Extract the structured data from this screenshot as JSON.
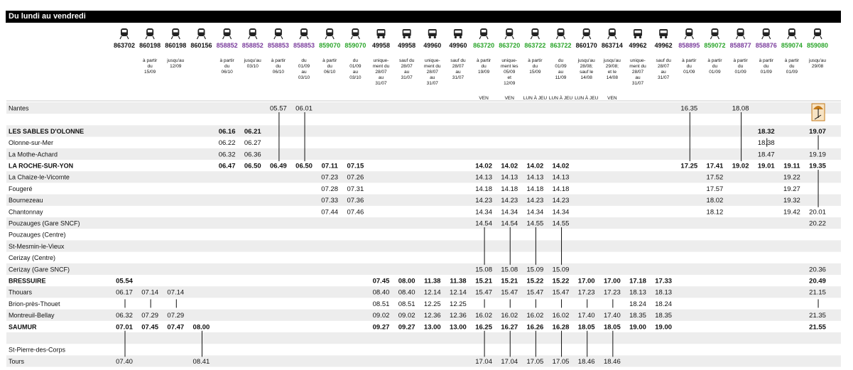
{
  "banner": "Du lundi au vendredi",
  "colors": {
    "purple": "#7a3d9c",
    "green": "#2aa52a",
    "black": "#111111",
    "band": "#ededed",
    "bus_icon_bg": "#f7e3c4"
  },
  "columns": [
    {
      "num": "863702",
      "color": "black",
      "icon": "train-icon",
      "note": [],
      "day": ""
    },
    {
      "num": "860198",
      "color": "black",
      "icon": "train-icon",
      "note": [
        "à partir",
        "du",
        "15/09"
      ],
      "day": ""
    },
    {
      "num": "860198",
      "color": "black",
      "icon": "train-icon",
      "note": [
        "jusqu'au",
        "12/09"
      ],
      "day": ""
    },
    {
      "num": "860156",
      "color": "black",
      "icon": "train-icon",
      "note": [],
      "day": ""
    },
    {
      "num": "858852",
      "color": "purple",
      "icon": "train-icon",
      "note": [
        "à partir",
        "du",
        "06/10"
      ],
      "day": ""
    },
    {
      "num": "858852",
      "color": "purple",
      "icon": "train-icon",
      "note": [
        "jusqu'au",
        "03/10"
      ],
      "day": ""
    },
    {
      "num": "858853",
      "color": "purple",
      "icon": "train-icon",
      "note": [
        "à partir",
        "du",
        "06/10"
      ],
      "day": ""
    },
    {
      "num": "858853",
      "color": "purple",
      "icon": "train-icon",
      "note": [
        "du",
        "01/09",
        "au",
        "03/10"
      ],
      "day": ""
    },
    {
      "num": "859070",
      "color": "green",
      "icon": "train-icon",
      "note": [
        "à partir",
        "du",
        "06/10"
      ],
      "day": ""
    },
    {
      "num": "859070",
      "color": "green",
      "icon": "train-icon",
      "note": [
        "du",
        "01/09",
        "au",
        "03/10"
      ],
      "day": ""
    },
    {
      "num": "49958",
      "color": "black",
      "icon": "bus-icon",
      "note": [
        "unique-",
        "ment du",
        "28/07",
        "au",
        "31/07"
      ],
      "day": ""
    },
    {
      "num": "49958",
      "color": "black",
      "icon": "bus-icon",
      "note": [
        "sauf du",
        "28/07",
        "au",
        "31/07"
      ],
      "day": ""
    },
    {
      "num": "49960",
      "color": "black",
      "icon": "bus-icon",
      "note": [
        "unique-",
        "ment du",
        "28/07",
        "au",
        "31/07"
      ],
      "day": ""
    },
    {
      "num": "49960",
      "color": "black",
      "icon": "bus-icon",
      "note": [
        "sauf du",
        "28/07",
        "au",
        "31/07"
      ],
      "day": ""
    },
    {
      "num": "863720",
      "color": "green",
      "icon": "train-icon",
      "note": [
        "à partir",
        "du",
        "19/09"
      ],
      "day": "VEN"
    },
    {
      "num": "863720",
      "color": "green",
      "icon": "train-icon",
      "note": [
        "unique-",
        "ment les",
        "05/09",
        "et",
        "12/09"
      ],
      "day": "VEN"
    },
    {
      "num": "863722",
      "color": "green",
      "icon": "train-icon",
      "note": [
        "à partir",
        "du",
        "15/09"
      ],
      "day": "LUN À JEU"
    },
    {
      "num": "863722",
      "color": "green",
      "icon": "train-icon",
      "note": [
        "du",
        "01/09",
        "au",
        "11/09"
      ],
      "day": "LUN À JEU"
    },
    {
      "num": "860170",
      "color": "black",
      "icon": "train-icon",
      "note": [
        "jusqu'au",
        "28/08;",
        "sauf le",
        "14/08"
      ],
      "day": "LUN À JEU"
    },
    {
      "num": "863714",
      "color": "black",
      "icon": "train-icon",
      "note": [
        "jusqu'au",
        "29/08;",
        "et le",
        "14/08"
      ],
      "day": "VEN"
    },
    {
      "num": "49962",
      "color": "black",
      "icon": "bus-icon",
      "note": [
        "unique-",
        "ment du",
        "28/07",
        "au",
        "31/07"
      ],
      "day": ""
    },
    {
      "num": "49962",
      "color": "black",
      "icon": "bus-icon",
      "note": [
        "sauf du",
        "28/07",
        "au",
        "31/07"
      ],
      "day": ""
    },
    {
      "num": "858895",
      "color": "purple",
      "icon": "train-icon",
      "note": [
        "à partir",
        "du",
        "01/09"
      ],
      "day": ""
    },
    {
      "num": "859072",
      "color": "green",
      "icon": "train-icon",
      "note": [
        "à partir",
        "du",
        "01/09"
      ],
      "day": ""
    },
    {
      "num": "858877",
      "color": "purple",
      "icon": "train-icon",
      "note": [
        "à partir",
        "du",
        "01/09"
      ],
      "day": ""
    },
    {
      "num": "858876",
      "color": "purple",
      "icon": "train-icon",
      "note": [
        "à partir",
        "du",
        "01/09"
      ],
      "day": ""
    },
    {
      "num": "859074",
      "color": "green",
      "icon": "train-icon",
      "note": [
        "à partir",
        "du",
        "01/09"
      ],
      "day": ""
    },
    {
      "num": "859080",
      "color": "green",
      "icon": "train-icon",
      "note": [
        "jusqu'au",
        "29/08"
      ],
      "day": ""
    }
  ],
  "stations": [
    {
      "name": "Nantes",
      "bold": false
    },
    {
      "name": "",
      "bold": false
    },
    {
      "name": "LES SABLES D'OLONNE",
      "bold": true
    },
    {
      "name": "Olonne-sur-Mer",
      "bold": false
    },
    {
      "name": "La Mothe-Achard",
      "bold": false
    },
    {
      "name": "LA ROCHE-SUR-YON",
      "bold": true
    },
    {
      "name": "La Chaize-le-Vicomte",
      "bold": false
    },
    {
      "name": "Fougeré",
      "bold": false
    },
    {
      "name": "Bournezeau",
      "bold": false
    },
    {
      "name": "Chantonnay",
      "bold": false
    },
    {
      "name": "Pouzauges (Gare SNCF)",
      "bold": false
    },
    {
      "name": "Pouzauges (Centre)",
      "bold": false
    },
    {
      "name": "St-Mesmin-le-Vieux",
      "bold": false
    },
    {
      "name": "Cerizay (Centre)",
      "bold": false
    },
    {
      "name": "Cerizay (Gare SNCF)",
      "bold": false
    },
    {
      "name": "BRESSUIRE",
      "bold": true
    },
    {
      "name": "Thouars",
      "bold": false
    },
    {
      "name": "Brion-près-Thouet",
      "bold": false
    },
    {
      "name": "Montreuil-Bellay",
      "bold": false
    },
    {
      "name": "SAUMUR",
      "bold": true
    },
    {
      "name": "",
      "bold": false
    },
    {
      "name": "St-Pierre-des-Corps",
      "bold": false
    },
    {
      "name": "Tours",
      "bold": false
    }
  ],
  "cells": [
    {
      "r": 0,
      "c": 6,
      "t": "05.57"
    },
    {
      "r": 0,
      "c": 7,
      "t": "06.01"
    },
    {
      "r": 0,
      "c": 22,
      "t": "16.35"
    },
    {
      "r": 0,
      "c": 24,
      "t": "18.08"
    },
    {
      "r": 2,
      "c": 4,
      "t": "06.16"
    },
    {
      "r": 2,
      "c": 5,
      "t": "06.21"
    },
    {
      "r": 2,
      "c": 25,
      "t": "18.32"
    },
    {
      "r": 2,
      "c": 27,
      "t": "19.07"
    },
    {
      "r": 3,
      "c": 4,
      "t": "06.22"
    },
    {
      "r": 3,
      "c": 5,
      "t": "06.27"
    },
    {
      "r": 3,
      "c": 25,
      "t": "18.38"
    },
    {
      "r": 4,
      "c": 4,
      "t": "06.32"
    },
    {
      "r": 4,
      "c": 5,
      "t": "06.36"
    },
    {
      "r": 4,
      "c": 25,
      "t": "18.47"
    },
    {
      "r": 4,
      "c": 27,
      "t": "19.19"
    },
    {
      "r": 5,
      "c": 4,
      "t": "06.47"
    },
    {
      "r": 5,
      "c": 5,
      "t": "06.50"
    },
    {
      "r": 5,
      "c": 6,
      "t": "06.49"
    },
    {
      "r": 5,
      "c": 7,
      "t": "06.50"
    },
    {
      "r": 5,
      "c": 8,
      "t": "07.11"
    },
    {
      "r": 5,
      "c": 9,
      "t": "07.15"
    },
    {
      "r": 5,
      "c": 14,
      "t": "14.02"
    },
    {
      "r": 5,
      "c": 15,
      "t": "14.02"
    },
    {
      "r": 5,
      "c": 16,
      "t": "14.02"
    },
    {
      "r": 5,
      "c": 17,
      "t": "14.02"
    },
    {
      "r": 5,
      "c": 22,
      "t": "17.25"
    },
    {
      "r": 5,
      "c": 23,
      "t": "17.41"
    },
    {
      "r": 5,
      "c": 24,
      "t": "19.02"
    },
    {
      "r": 5,
      "c": 25,
      "t": "19.01"
    },
    {
      "r": 5,
      "c": 26,
      "t": "19.11"
    },
    {
      "r": 5,
      "c": 27,
      "t": "19.35"
    },
    {
      "r": 6,
      "c": 8,
      "t": "07.23"
    },
    {
      "r": 6,
      "c": 9,
      "t": "07.26"
    },
    {
      "r": 6,
      "c": 14,
      "t": "14.13"
    },
    {
      "r": 6,
      "c": 15,
      "t": "14.13"
    },
    {
      "r": 6,
      "c": 16,
      "t": "14.13"
    },
    {
      "r": 6,
      "c": 17,
      "t": "14.13"
    },
    {
      "r": 6,
      "c": 23,
      "t": "17.52"
    },
    {
      "r": 6,
      "c": 26,
      "t": "19.22"
    },
    {
      "r": 7,
      "c": 8,
      "t": "07.28"
    },
    {
      "r": 7,
      "c": 9,
      "t": "07.31"
    },
    {
      "r": 7,
      "c": 14,
      "t": "14.18"
    },
    {
      "r": 7,
      "c": 15,
      "t": "14.18"
    },
    {
      "r": 7,
      "c": 16,
      "t": "14.18"
    },
    {
      "r": 7,
      "c": 17,
      "t": "14.18"
    },
    {
      "r": 7,
      "c": 23,
      "t": "17.57"
    },
    {
      "r": 7,
      "c": 26,
      "t": "19.27"
    },
    {
      "r": 8,
      "c": 8,
      "t": "07.33"
    },
    {
      "r": 8,
      "c": 9,
      "t": "07.36"
    },
    {
      "r": 8,
      "c": 14,
      "t": "14.23"
    },
    {
      "r": 8,
      "c": 15,
      "t": "14.23"
    },
    {
      "r": 8,
      "c": 16,
      "t": "14.23"
    },
    {
      "r": 8,
      "c": 17,
      "t": "14.23"
    },
    {
      "r": 8,
      "c": 23,
      "t": "18.02"
    },
    {
      "r": 8,
      "c": 26,
      "t": "19.32"
    },
    {
      "r": 9,
      "c": 8,
      "t": "07.44"
    },
    {
      "r": 9,
      "c": 9,
      "t": "07.46"
    },
    {
      "r": 9,
      "c": 14,
      "t": "14.34"
    },
    {
      "r": 9,
      "c": 15,
      "t": "14.34"
    },
    {
      "r": 9,
      "c": 16,
      "t": "14.34"
    },
    {
      "r": 9,
      "c": 17,
      "t": "14.34"
    },
    {
      "r": 9,
      "c": 23,
      "t": "18.12"
    },
    {
      "r": 9,
      "c": 26,
      "t": "19.42"
    },
    {
      "r": 9,
      "c": 27,
      "t": "20.01"
    },
    {
      "r": 10,
      "c": 14,
      "t": "14.54"
    },
    {
      "r": 10,
      "c": 15,
      "t": "14.54"
    },
    {
      "r": 10,
      "c": 16,
      "t": "14.55"
    },
    {
      "r": 10,
      "c": 17,
      "t": "14.55"
    },
    {
      "r": 10,
      "c": 27,
      "t": "20.22"
    },
    {
      "r": 14,
      "c": 14,
      "t": "15.08"
    },
    {
      "r": 14,
      "c": 15,
      "t": "15.08"
    },
    {
      "r": 14,
      "c": 16,
      "t": "15.09"
    },
    {
      "r": 14,
      "c": 17,
      "t": "15.09"
    },
    {
      "r": 14,
      "c": 27,
      "t": "20.36"
    },
    {
      "r": 15,
      "c": 0,
      "t": "05.54"
    },
    {
      "r": 15,
      "c": 10,
      "t": "07.45"
    },
    {
      "r": 15,
      "c": 11,
      "t": "08.00"
    },
    {
      "r": 15,
      "c": 12,
      "t": "11.38"
    },
    {
      "r": 15,
      "c": 13,
      "t": "11.38"
    },
    {
      "r": 15,
      "c": 14,
      "t": "15.21"
    },
    {
      "r": 15,
      "c": 15,
      "t": "15.21"
    },
    {
      "r": 15,
      "c": 16,
      "t": "15.22"
    },
    {
      "r": 15,
      "c": 17,
      "t": "15.22"
    },
    {
      "r": 15,
      "c": 18,
      "t": "17.00"
    },
    {
      "r": 15,
      "c": 19,
      "t": "17.00"
    },
    {
      "r": 15,
      "c": 20,
      "t": "17.18"
    },
    {
      "r": 15,
      "c": 21,
      "t": "17.33"
    },
    {
      "r": 15,
      "c": 27,
      "t": "20.49"
    },
    {
      "r": 16,
      "c": 0,
      "t": "06.17"
    },
    {
      "r": 16,
      "c": 1,
      "t": "07.14"
    },
    {
      "r": 16,
      "c": 2,
      "t": "07.14"
    },
    {
      "r": 16,
      "c": 10,
      "t": "08.40"
    },
    {
      "r": 16,
      "c": 11,
      "t": "08.40"
    },
    {
      "r": 16,
      "c": 12,
      "t": "12.14"
    },
    {
      "r": 16,
      "c": 13,
      "t": "12.14"
    },
    {
      "r": 16,
      "c": 14,
      "t": "15.47"
    },
    {
      "r": 16,
      "c": 15,
      "t": "15.47"
    },
    {
      "r": 16,
      "c": 16,
      "t": "15.47"
    },
    {
      "r": 16,
      "c": 17,
      "t": "15.47"
    },
    {
      "r": 16,
      "c": 18,
      "t": "17.23"
    },
    {
      "r": 16,
      "c": 19,
      "t": "17.23"
    },
    {
      "r": 16,
      "c": 20,
      "t": "18.13"
    },
    {
      "r": 16,
      "c": 21,
      "t": "18.13"
    },
    {
      "r": 16,
      "c": 27,
      "t": "21.15"
    },
    {
      "r": 17,
      "c": 10,
      "t": "08.51"
    },
    {
      "r": 17,
      "c": 11,
      "t": "08.51"
    },
    {
      "r": 17,
      "c": 12,
      "t": "12.25"
    },
    {
      "r": 17,
      "c": 13,
      "t": "12.25"
    },
    {
      "r": 17,
      "c": 20,
      "t": "18.24"
    },
    {
      "r": 17,
      "c": 21,
      "t": "18.24"
    },
    {
      "r": 18,
      "c": 0,
      "t": "06.32"
    },
    {
      "r": 18,
      "c": 1,
      "t": "07.29"
    },
    {
      "r": 18,
      "c": 2,
      "t": "07.29"
    },
    {
      "r": 18,
      "c": 10,
      "t": "09.02"
    },
    {
      "r": 18,
      "c": 11,
      "t": "09.02"
    },
    {
      "r": 18,
      "c": 12,
      "t": "12.36"
    },
    {
      "r": 18,
      "c": 13,
      "t": "12.36"
    },
    {
      "r": 18,
      "c": 14,
      "t": "16.02"
    },
    {
      "r": 18,
      "c": 15,
      "t": "16.02"
    },
    {
      "r": 18,
      "c": 16,
      "t": "16.02"
    },
    {
      "r": 18,
      "c": 17,
      "t": "16.02"
    },
    {
      "r": 18,
      "c": 18,
      "t": "17.40"
    },
    {
      "r": 18,
      "c": 19,
      "t": "17.40"
    },
    {
      "r": 18,
      "c": 20,
      "t": "18.35"
    },
    {
      "r": 18,
      "c": 21,
      "t": "18.35"
    },
    {
      "r": 18,
      "c": 27,
      "t": "21.35"
    },
    {
      "r": 19,
      "c": 0,
      "t": "07.01"
    },
    {
      "r": 19,
      "c": 1,
      "t": "07.45"
    },
    {
      "r": 19,
      "c": 2,
      "t": "07.47"
    },
    {
      "r": 19,
      "c": 3,
      "t": "08.00"
    },
    {
      "r": 19,
      "c": 10,
      "t": "09.27"
    },
    {
      "r": 19,
      "c": 11,
      "t": "09.27"
    },
    {
      "r": 19,
      "c": 12,
      "t": "13.00"
    },
    {
      "r": 19,
      "c": 13,
      "t": "13.00"
    },
    {
      "r": 19,
      "c": 14,
      "t": "16.25"
    },
    {
      "r": 19,
      "c": 15,
      "t": "16.27"
    },
    {
      "r": 19,
      "c": 16,
      "t": "16.26"
    },
    {
      "r": 19,
      "c": 17,
      "t": "16.28"
    },
    {
      "r": 19,
      "c": 18,
      "t": "18.05"
    },
    {
      "r": 19,
      "c": 19,
      "t": "18.05"
    },
    {
      "r": 19,
      "c": 20,
      "t": "19.00"
    },
    {
      "r": 19,
      "c": 21,
      "t": "19.00"
    },
    {
      "r": 19,
      "c": 27,
      "t": "21.55"
    },
    {
      "r": 22,
      "c": 0,
      "t": "07.40"
    },
    {
      "r": 22,
      "c": 3,
      "t": "08.41"
    },
    {
      "r": 22,
      "c": 14,
      "t": "17.04"
    },
    {
      "r": 22,
      "c": 15,
      "t": "17.04"
    },
    {
      "r": 22,
      "c": 16,
      "t": "17.05"
    },
    {
      "r": 22,
      "c": 17,
      "t": "17.05"
    },
    {
      "r": 22,
      "c": 18,
      "t": "18.46"
    },
    {
      "r": 22,
      "c": 19,
      "t": "18.46"
    }
  ],
  "passes": [
    {
      "c": 6,
      "from": 0,
      "to": 5
    },
    {
      "c": 7,
      "from": 0,
      "to": 5
    },
    {
      "c": 22,
      "from": 0,
      "to": 5
    },
    {
      "c": 24,
      "from": 0,
      "to": 5
    },
    {
      "c": 27,
      "from": 2,
      "to": 4
    },
    {
      "c": 27,
      "from": 5,
      "to": 9
    },
    {
      "c": 14,
      "from": 10,
      "to": 14
    },
    {
      "c": 15,
      "from": 10,
      "to": 14
    },
    {
      "c": 16,
      "from": 10,
      "to": 14
    },
    {
      "c": 17,
      "from": 10,
      "to": 14
    },
    {
      "c": 14,
      "from": 19,
      "to": 22
    },
    {
      "c": 15,
      "from": 19,
      "to": 22
    },
    {
      "c": 16,
      "from": 19,
      "to": 22
    },
    {
      "c": 17,
      "from": 19,
      "to": 22
    },
    {
      "c": 18,
      "from": 19,
      "to": 22
    },
    {
      "c": 19,
      "from": 19,
      "to": 22
    },
    {
      "c": 0,
      "from": 19,
      "to": 22
    },
    {
      "c": 3,
      "from": 19,
      "to": 22
    }
  ],
  "bypass": [
    {
      "c": 1,
      "r": 17
    },
    {
      "c": 2,
      "r": 17
    },
    {
      "c": 14,
      "r": 17
    },
    {
      "c": 15,
      "r": 17
    },
    {
      "c": 16,
      "r": 17
    },
    {
      "c": 17,
      "r": 17
    },
    {
      "c": 18,
      "r": 17
    },
    {
      "c": 19,
      "r": 17
    },
    {
      "c": 27,
      "r": 17
    },
    {
      "c": 25,
      "r": 3
    }
  ],
  "markers": [
    {
      "c": 27,
      "r": 0,
      "icon": "beach-umbrella-icon"
    },
    {
      "c": 0,
      "r": 17,
      "icon": "bypass-icon"
    }
  ]
}
